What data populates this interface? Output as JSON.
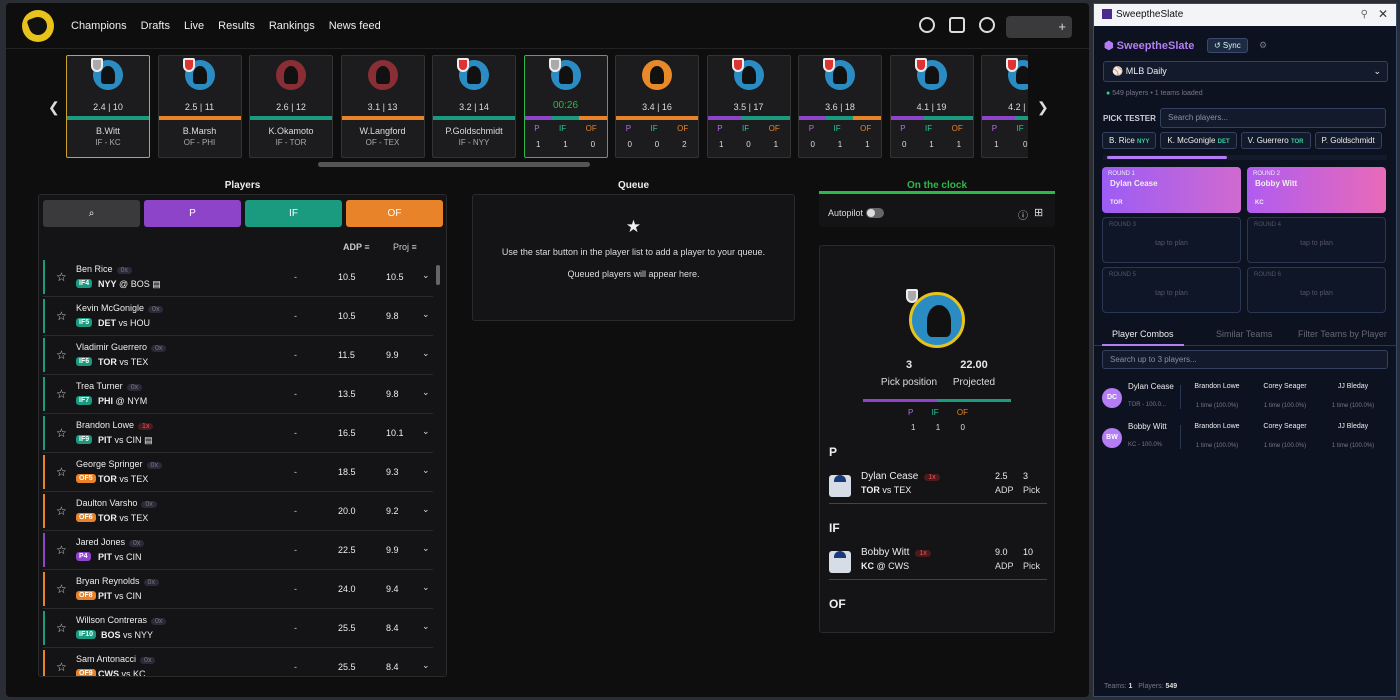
{
  "nav": {
    "links": [
      "Champions",
      "Drafts",
      "Live",
      "Results",
      "Rankings",
      "News feed"
    ],
    "search_plus": "+"
  },
  "board": {
    "cards": [
      {
        "adp": "2.4  |  10",
        "name": "B.Witt",
        "pos": "IF - KC",
        "bar": "i",
        "av": "blue2",
        "shield": "w",
        "hl": true
      },
      {
        "adp": "2.5  |  11",
        "name": "B.Marsh",
        "pos": "OF - PHI",
        "bar": "or",
        "av": "blue2",
        "shield": "r"
      },
      {
        "adp": "2.6  |  12",
        "name": "K.Okamoto",
        "pos": "IF - TOR",
        "bar": "i",
        "av": "red",
        "shield": ""
      },
      {
        "adp": "3.1  |  13",
        "name": "W.Langford",
        "pos": "OF - TEX",
        "bar": "or",
        "av": "red",
        "shield": ""
      },
      {
        "adp": "3.2  |  14",
        "name": "P.Goldschmidt",
        "pos": "IF - NYY",
        "bar": "i",
        "av": "blue2",
        "shield": "r"
      },
      {
        "current": true,
        "timer": "00:26",
        "counts": [
          "1",
          "1",
          "0"
        ],
        "av": "blue2",
        "shield": "w"
      },
      {
        "adp": "3.4  |  16",
        "counts": [
          "0",
          "0",
          "2"
        ],
        "bar": "or",
        "av": "orange",
        "shield": ""
      },
      {
        "adp": "3.5  |  17",
        "counts": [
          "1",
          "0",
          "1"
        ],
        "bar": "pu",
        "av": "blue2",
        "shield": "r"
      },
      {
        "adp": "3.6  |  18",
        "counts": [
          "0",
          "1",
          "1"
        ],
        "bar": "mix",
        "av": "blue2",
        "shield": "r"
      },
      {
        "adp": "4.1  |  19",
        "counts": [
          "0",
          "1",
          "1"
        ],
        "bar": "pu",
        "av": "blue2",
        "shield": "r"
      },
      {
        "adp": "4.2  |  20",
        "counts": [
          "1",
          "0",
          ""
        ],
        "bar": "pu",
        "av": "blue2",
        "shield": "r"
      }
    ],
    "pos_labels": [
      "P",
      "IF",
      "OF"
    ]
  },
  "headers": {
    "players": "Players",
    "queue": "Queue",
    "clock": "On the clock"
  },
  "players": {
    "filters": [
      "P",
      "IF",
      "OF"
    ],
    "adp_label": "ADP",
    "proj_label": "Proj",
    "rows": [
      {
        "name": "Ben Rice",
        "dx": "0x",
        "tag": "IF4",
        "tag_c": "i",
        "team": "NYY",
        "sep": "@",
        "opp": "BOS",
        "note": true,
        "adp": "10.5",
        "proj": "10.5"
      },
      {
        "name": "Kevin McGonigle",
        "dx": "0x",
        "tag": "IF5",
        "tag_c": "i",
        "team": "DET",
        "sep": "vs",
        "opp": "HOU",
        "adp": "10.5",
        "proj": "9.8"
      },
      {
        "name": "Vladimir Guerrero",
        "dx": "0x",
        "tag": "IF6",
        "tag_c": "i",
        "team": "TOR",
        "sep": "vs",
        "opp": "TEX",
        "adp": "11.5",
        "proj": "9.9"
      },
      {
        "name": "Trea Turner",
        "dx": "0x",
        "tag": "IF7",
        "tag_c": "i",
        "team": "PHI",
        "sep": "@",
        "opp": "NYM",
        "adp": "13.5",
        "proj": "9.8"
      },
      {
        "name": "Brandon Lowe",
        "dx": "1x",
        "red": true,
        "tag": "IF9",
        "tag_c": "i",
        "team": "PIT",
        "sep": "vs",
        "opp": "CIN",
        "note": true,
        "adp": "16.5",
        "proj": "10.1"
      },
      {
        "name": "George Springer",
        "dx": "0x",
        "tag": "OF5",
        "tag_c": "o",
        "team": "TOR",
        "sep": "vs",
        "opp": "TEX",
        "adp": "18.5",
        "proj": "9.3"
      },
      {
        "name": "Daulton Varsho",
        "dx": "0x",
        "tag": "OF6",
        "tag_c": "o",
        "team": "TOR",
        "sep": "vs",
        "opp": "TEX",
        "adp": "20.0",
        "proj": "9.2"
      },
      {
        "name": "Jared Jones",
        "dx": "0x",
        "tag": "P4",
        "tag_c": "p",
        "team": "PIT",
        "sep": "vs",
        "opp": "CIN",
        "adp": "22.5",
        "proj": "9.9"
      },
      {
        "name": "Bryan Reynolds",
        "dx": "0x",
        "tag": "OF8",
        "tag_c": "o",
        "team": "PIT",
        "sep": "vs",
        "opp": "CIN",
        "adp": "24.0",
        "proj": "9.4"
      },
      {
        "name": "Willson Contreras",
        "dx": "0x",
        "tag": "IF10",
        "tag_c": "i",
        "team": "BOS",
        "sep": "vs",
        "opp": "NYY",
        "adp": "25.5",
        "proj": "8.4"
      },
      {
        "name": "Sam Antonacci",
        "dx": "0x",
        "tag": "OF9",
        "tag_c": "o",
        "team": "CWS",
        "sep": "vs",
        "opp": "KC",
        "adp": "25.5",
        "proj": "8.4"
      }
    ],
    "dash": "-"
  },
  "queue": {
    "line1": "Use the star button in the player list to add a player to your queue.",
    "line2": "Queued players will appear here."
  },
  "clock": {
    "autopilot": "Autopilot"
  },
  "team": {
    "pick_pos": "3",
    "pick_pos_label": "Pick position",
    "projected": "22.00",
    "projected_label": "Projected",
    "counts": [
      "1",
      "1",
      "0"
    ],
    "sections": [
      {
        "label": "P",
        "player": {
          "name": "Dylan Cease",
          "dx": "1x",
          "team": "TOR",
          "sep": "vs",
          "opp": "TEX",
          "adp": "2.5",
          "adp_label": "ADP",
          "pick": "3",
          "pick_label": "Pick"
        }
      },
      {
        "label": "IF",
        "player": {
          "name": "Bobby Witt",
          "dx": "1x",
          "team": "KC",
          "sep": "@",
          "opp": "CWS",
          "adp": "9.0",
          "adp_label": "ADP",
          "pick": "10",
          "pick_label": "Pick"
        }
      },
      {
        "label": "OF"
      }
    ]
  },
  "ext": {
    "title": "SweeptheSlate",
    "brand": "SweeptheSlate",
    "sync": "↺ Sync",
    "select": "MLB Daily",
    "meta": "549 players • 1 teams loaded",
    "pick_tester": "PICK TESTER",
    "search_ph": "Search players...",
    "chips": [
      {
        "n": "B. Rice",
        "t": "NYY"
      },
      {
        "n": "K. McGonigle",
        "t": "DET"
      },
      {
        "n": "V. Guerrero",
        "t": "TOR"
      },
      {
        "n": "P. Goldschmidt",
        "t": ""
      }
    ],
    "rounds": [
      {
        "l": "ROUND 1",
        "n": "Dylan Cease",
        "t": "TOR"
      },
      {
        "l": "ROUND 2",
        "n": "Bobby Witt",
        "t": "KC"
      },
      {
        "l": "ROUND 3",
        "tap": "tap to plan"
      },
      {
        "l": "ROUND 4",
        "tap": "tap to plan"
      },
      {
        "l": "ROUND 5",
        "tap": "tap to plan"
      },
      {
        "l": "ROUND 6",
        "tap": "tap to plan"
      }
    ],
    "tabs": [
      "Player Combos",
      "Similar Teams",
      "Filter Teams by Player"
    ],
    "combo_ph": "Search up to 3 players...",
    "combos": [
      {
        "ini": "DC",
        "n": "Dylan Cease",
        "s": "TOR - 100.0...",
        "o": [
          {
            "n": "Brandon Lowe",
            "s": "1 time (100.0%)"
          },
          {
            "n": "Corey Seager",
            "s": "1 time (100.0%)"
          },
          {
            "n": "JJ Bleday",
            "s": "1 time (100.0%)"
          }
        ]
      },
      {
        "ini": "BW",
        "n": "Bobby Witt",
        "s": "KC - 100.0%",
        "o": [
          {
            "n": "Brandon Lowe",
            "s": "1 time (100.0%)"
          },
          {
            "n": "Corey Seager",
            "s": "1 time (100.0%)"
          },
          {
            "n": "JJ Bleday",
            "s": "1 time (100.0%)"
          }
        ]
      }
    ],
    "foot_teams_label": "Teams:",
    "foot_teams": "1",
    "foot_players_label": "Players:",
    "foot_players": "549"
  }
}
